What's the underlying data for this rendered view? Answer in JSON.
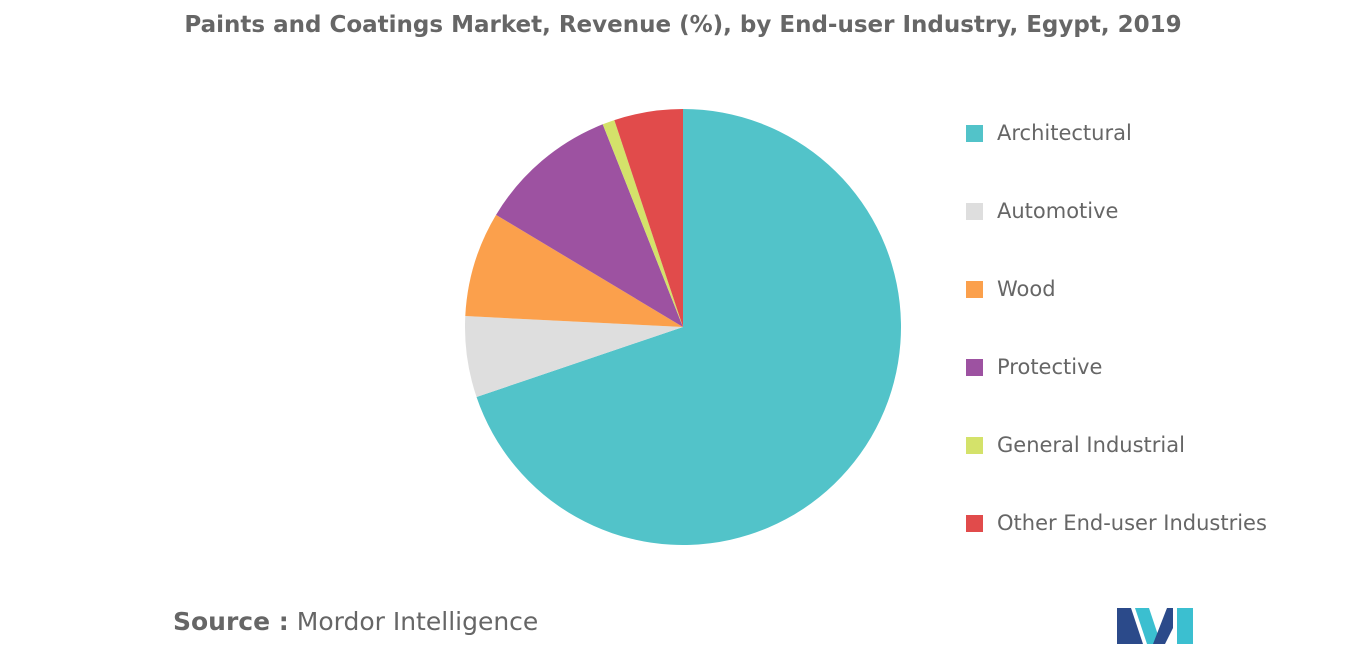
{
  "chart_data": {
    "type": "pie",
    "title": "Paints and Coatings Market, Revenue (%), by End-user Industry, Egypt, 2019",
    "start_angle_deg": 0,
    "direction": "clockwise",
    "slices": [
      {
        "label": "Architectural",
        "value": 69.8,
        "color": "#52c3c9"
      },
      {
        "label": "Automotive",
        "value": 6.0,
        "color": "#dedede"
      },
      {
        "label": "Wood",
        "value": 7.8,
        "color": "#fba04c"
      },
      {
        "label": "Protective",
        "value": 10.4,
        "color": "#9d52a1"
      },
      {
        "label": "General Industrial",
        "value": 0.9,
        "color": "#d4e26a"
      },
      {
        "label": "Other End-user Industries",
        "value": 5.1,
        "color": "#e14b4b"
      }
    ],
    "legend_position": "right"
  },
  "source": {
    "prefix": "Source :",
    "name": "Mordor Intelligence"
  },
  "logo": {
    "name": "mordor-intelligence-logo",
    "colors": [
      "#2b4a8a",
      "#3bbfd0"
    ]
  }
}
